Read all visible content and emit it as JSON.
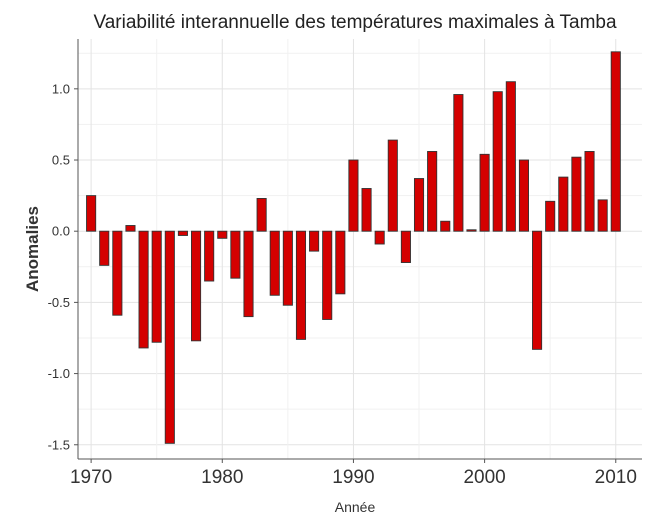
{
  "chart_data": {
    "type": "bar",
    "title": "Variabilité interannuelle des températures maximales à Tamba",
    "xlabel": "Année",
    "ylabel": "Anomalies",
    "x": [
      1970,
      1971,
      1972,
      1973,
      1974,
      1975,
      1976,
      1977,
      1978,
      1979,
      1980,
      1981,
      1982,
      1983,
      1984,
      1985,
      1986,
      1987,
      1988,
      1989,
      1990,
      1991,
      1992,
      1993,
      1994,
      1995,
      1996,
      1997,
      1998,
      1999,
      2000,
      2001,
      2002,
      2003,
      2004,
      2005,
      2006,
      2007,
      2008,
      2009,
      2010
    ],
    "values": [
      0.25,
      -0.24,
      -0.59,
      0.04,
      -0.82,
      -0.78,
      -1.49,
      -0.03,
      -0.77,
      -0.35,
      -0.05,
      -0.33,
      -0.6,
      0.23,
      -0.45,
      -0.52,
      -0.76,
      -0.14,
      -0.62,
      -0.44,
      0.5,
      0.3,
      -0.09,
      0.64,
      -0.22,
      0.37,
      0.56,
      0.07,
      0.96,
      0.01,
      0.54,
      0.98,
      1.05,
      0.5,
      -0.83,
      0.21,
      0.38,
      0.52,
      0.56,
      0.22,
      1.26
    ],
    "xlim": [
      1969,
      2012
    ],
    "ylim": [
      -1.6,
      1.35
    ],
    "x_ticks": [
      "1970",
      "1980",
      "1990",
      "2000",
      "2010"
    ],
    "y_ticks": [
      "-1.5",
      "-1.0",
      "-0.5",
      "0.0",
      "0.5",
      "1.0"
    ],
    "bar_color": "#d40000",
    "bar_edge_color": "#333333",
    "grid": true
  }
}
